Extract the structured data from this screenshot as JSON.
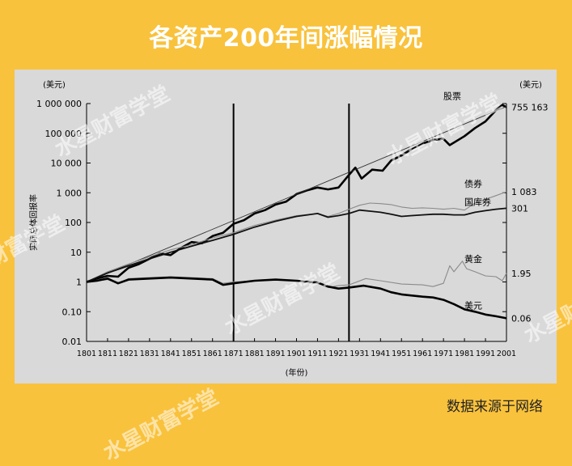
{
  "title": "各资产200年间涨幅情况",
  "source": "数据来源于网络",
  "watermark": "水星财富学堂",
  "colors": {
    "background": "#f9c23c",
    "panel": "#d9d9d9",
    "ink": "#000000",
    "gray_line": "#8a8a8a"
  },
  "chart_data": {
    "type": "line",
    "scale": "log",
    "xlabel": "(年份)",
    "ylabel": "实际总体回报率",
    "y_unit_left": "(美元)",
    "y_unit_right": "(美元)",
    "xlim": [
      1801,
      2001
    ],
    "ylim": [
      0.01,
      1000000
    ],
    "x_ticks": [
      "1801",
      "1811",
      "1821",
      "1831",
      "1841",
      "1851",
      "1861",
      "1871",
      "1881",
      "1891",
      "1901",
      "1911",
      "1921",
      "1931",
      "1941",
      "1951",
      "1961",
      "1971",
      "1981",
      "1991",
      "2001"
    ],
    "y_ticks": [
      {
        "value": 1000000,
        "label": "1 000 000"
      },
      {
        "value": 100000,
        "label": "100 000"
      },
      {
        "value": 10000,
        "label": "10 000"
      },
      {
        "value": 1000,
        "label": "1 000"
      },
      {
        "value": 100,
        "label": "100"
      },
      {
        "value": 10,
        "label": "10"
      },
      {
        "value": 1,
        "label": "1"
      },
      {
        "value": 0.1,
        "label": "0.10"
      },
      {
        "value": 0.01,
        "label": "0.01"
      }
    ],
    "vertical_markers": [
      1871,
      1926
    ],
    "series": [
      {
        "name": "股票",
        "end_label": "755 163",
        "style": "thick",
        "points": [
          [
            1801,
            1
          ],
          [
            1806,
            1.3
          ],
          [
            1811,
            1.6
          ],
          [
            1816,
            1.5
          ],
          [
            1821,
            3
          ],
          [
            1826,
            4
          ],
          [
            1831,
            6
          ],
          [
            1836,
            9
          ],
          [
            1841,
            8
          ],
          [
            1846,
            14
          ],
          [
            1851,
            22
          ],
          [
            1856,
            20
          ],
          [
            1861,
            35
          ],
          [
            1866,
            45
          ],
          [
            1871,
            90
          ],
          [
            1876,
            120
          ],
          [
            1881,
            200
          ],
          [
            1886,
            260
          ],
          [
            1891,
            400
          ],
          [
            1896,
            500
          ],
          [
            1901,
            900
          ],
          [
            1906,
            1200
          ],
          [
            1911,
            1500
          ],
          [
            1916,
            1300
          ],
          [
            1921,
            1500
          ],
          [
            1926,
            4000
          ],
          [
            1929,
            7000
          ],
          [
            1932,
            3000
          ],
          [
            1937,
            6000
          ],
          [
            1942,
            5500
          ],
          [
            1946,
            12000
          ],
          [
            1951,
            18000
          ],
          [
            1956,
            30000
          ],
          [
            1961,
            45000
          ],
          [
            1966,
            60000
          ],
          [
            1971,
            65000
          ],
          [
            1974,
            40000
          ],
          [
            1981,
            80000
          ],
          [
            1986,
            150000
          ],
          [
            1991,
            250000
          ],
          [
            1996,
            600000
          ],
          [
            1999,
            900000
          ],
          [
            2001,
            755163
          ]
        ]
      },
      {
        "name": "趋势线",
        "end_label": "",
        "style": "thin",
        "points": [
          [
            1801,
            1
          ],
          [
            2001,
            800000
          ]
        ]
      },
      {
        "name": "债券",
        "end_label": "1 083",
        "style": "gray",
        "points": [
          [
            1801,
            1
          ],
          [
            1811,
            2.2
          ],
          [
            1821,
            4
          ],
          [
            1831,
            7
          ],
          [
            1841,
            12
          ],
          [
            1851,
            18
          ],
          [
            1861,
            30
          ],
          [
            1871,
            45
          ],
          [
            1881,
            80
          ],
          [
            1891,
            120
          ],
          [
            1901,
            170
          ],
          [
            1911,
            200
          ],
          [
            1916,
            160
          ],
          [
            1921,
            200
          ],
          [
            1926,
            280
          ],
          [
            1931,
            380
          ],
          [
            1936,
            450
          ],
          [
            1941,
            430
          ],
          [
            1946,
            400
          ],
          [
            1951,
            330
          ],
          [
            1956,
            300
          ],
          [
            1961,
            310
          ],
          [
            1966,
            300
          ],
          [
            1971,
            280
          ],
          [
            1976,
            300
          ],
          [
            1981,
            260
          ],
          [
            1986,
            450
          ],
          [
            1991,
            600
          ],
          [
            1996,
            800
          ],
          [
            2001,
            1083
          ]
        ]
      },
      {
        "name": "国库券",
        "end_label": "301",
        "style": "medium",
        "points": [
          [
            1801,
            1
          ],
          [
            1811,
            2
          ],
          [
            1821,
            3.5
          ],
          [
            1831,
            6
          ],
          [
            1841,
            10
          ],
          [
            1851,
            16
          ],
          [
            1861,
            25
          ],
          [
            1871,
            40
          ],
          [
            1881,
            70
          ],
          [
            1891,
            110
          ],
          [
            1901,
            160
          ],
          [
            1911,
            200
          ],
          [
            1916,
            150
          ],
          [
            1921,
            170
          ],
          [
            1926,
            200
          ],
          [
            1931,
            260
          ],
          [
            1936,
            240
          ],
          [
            1941,
            220
          ],
          [
            1946,
            190
          ],
          [
            1951,
            160
          ],
          [
            1956,
            170
          ],
          [
            1961,
            180
          ],
          [
            1966,
            190
          ],
          [
            1971,
            190
          ],
          [
            1976,
            180
          ],
          [
            1981,
            180
          ],
          [
            1986,
            220
          ],
          [
            1991,
            250
          ],
          [
            1996,
            280
          ],
          [
            2001,
            301
          ]
        ]
      },
      {
        "name": "黄金",
        "end_label": "1.95",
        "style": "gray",
        "points": [
          [
            1801,
            1
          ],
          [
            1811,
            1.2
          ],
          [
            1816,
            0.9
          ],
          [
            1821,
            1.3
          ],
          [
            1831,
            1.4
          ],
          [
            1841,
            1.5
          ],
          [
            1851,
            1.4
          ],
          [
            1861,
            1.3
          ],
          [
            1866,
            0.9
          ],
          [
            1871,
            1.0
          ],
          [
            1881,
            1.1
          ],
          [
            1891,
            1.2
          ],
          [
            1901,
            1.1
          ],
          [
            1911,
            1.0
          ],
          [
            1916,
            0.65
          ],
          [
            1921,
            0.75
          ],
          [
            1926,
            0.8
          ],
          [
            1934,
            1.3
          ],
          [
            1941,
            1.1
          ],
          [
            1951,
            0.85
          ],
          [
            1961,
            0.8
          ],
          [
            1966,
            0.7
          ],
          [
            1971,
            0.9
          ],
          [
            1974,
            3.5
          ],
          [
            1976,
            2.2
          ],
          [
            1980,
            5.0
          ],
          [
            1982,
            2.8
          ],
          [
            1986,
            2.2
          ],
          [
            1991,
            1.6
          ],
          [
            1996,
            1.5
          ],
          [
            1999,
            1.1
          ],
          [
            2001,
            1.95
          ]
        ]
      },
      {
        "name": "美元",
        "end_label": "0.06",
        "style": "thick",
        "points": [
          [
            1801,
            1
          ],
          [
            1806,
            1.1
          ],
          [
            1811,
            1.3
          ],
          [
            1816,
            0.9
          ],
          [
            1821,
            1.2
          ],
          [
            1831,
            1.3
          ],
          [
            1841,
            1.4
          ],
          [
            1851,
            1.3
          ],
          [
            1861,
            1.2
          ],
          [
            1866,
            0.8
          ],
          [
            1871,
            0.9
          ],
          [
            1881,
            1.1
          ],
          [
            1891,
            1.2
          ],
          [
            1901,
            1.1
          ],
          [
            1911,
            0.95
          ],
          [
            1916,
            0.7
          ],
          [
            1921,
            0.6
          ],
          [
            1926,
            0.65
          ],
          [
            1933,
            0.75
          ],
          [
            1941,
            0.6
          ],
          [
            1946,
            0.45
          ],
          [
            1951,
            0.38
          ],
          [
            1961,
            0.32
          ],
          [
            1966,
            0.3
          ],
          [
            1971,
            0.25
          ],
          [
            1976,
            0.18
          ],
          [
            1981,
            0.12
          ],
          [
            1986,
            0.1
          ],
          [
            1991,
            0.08
          ],
          [
            1996,
            0.07
          ],
          [
            2001,
            0.06
          ]
        ]
      }
    ]
  }
}
